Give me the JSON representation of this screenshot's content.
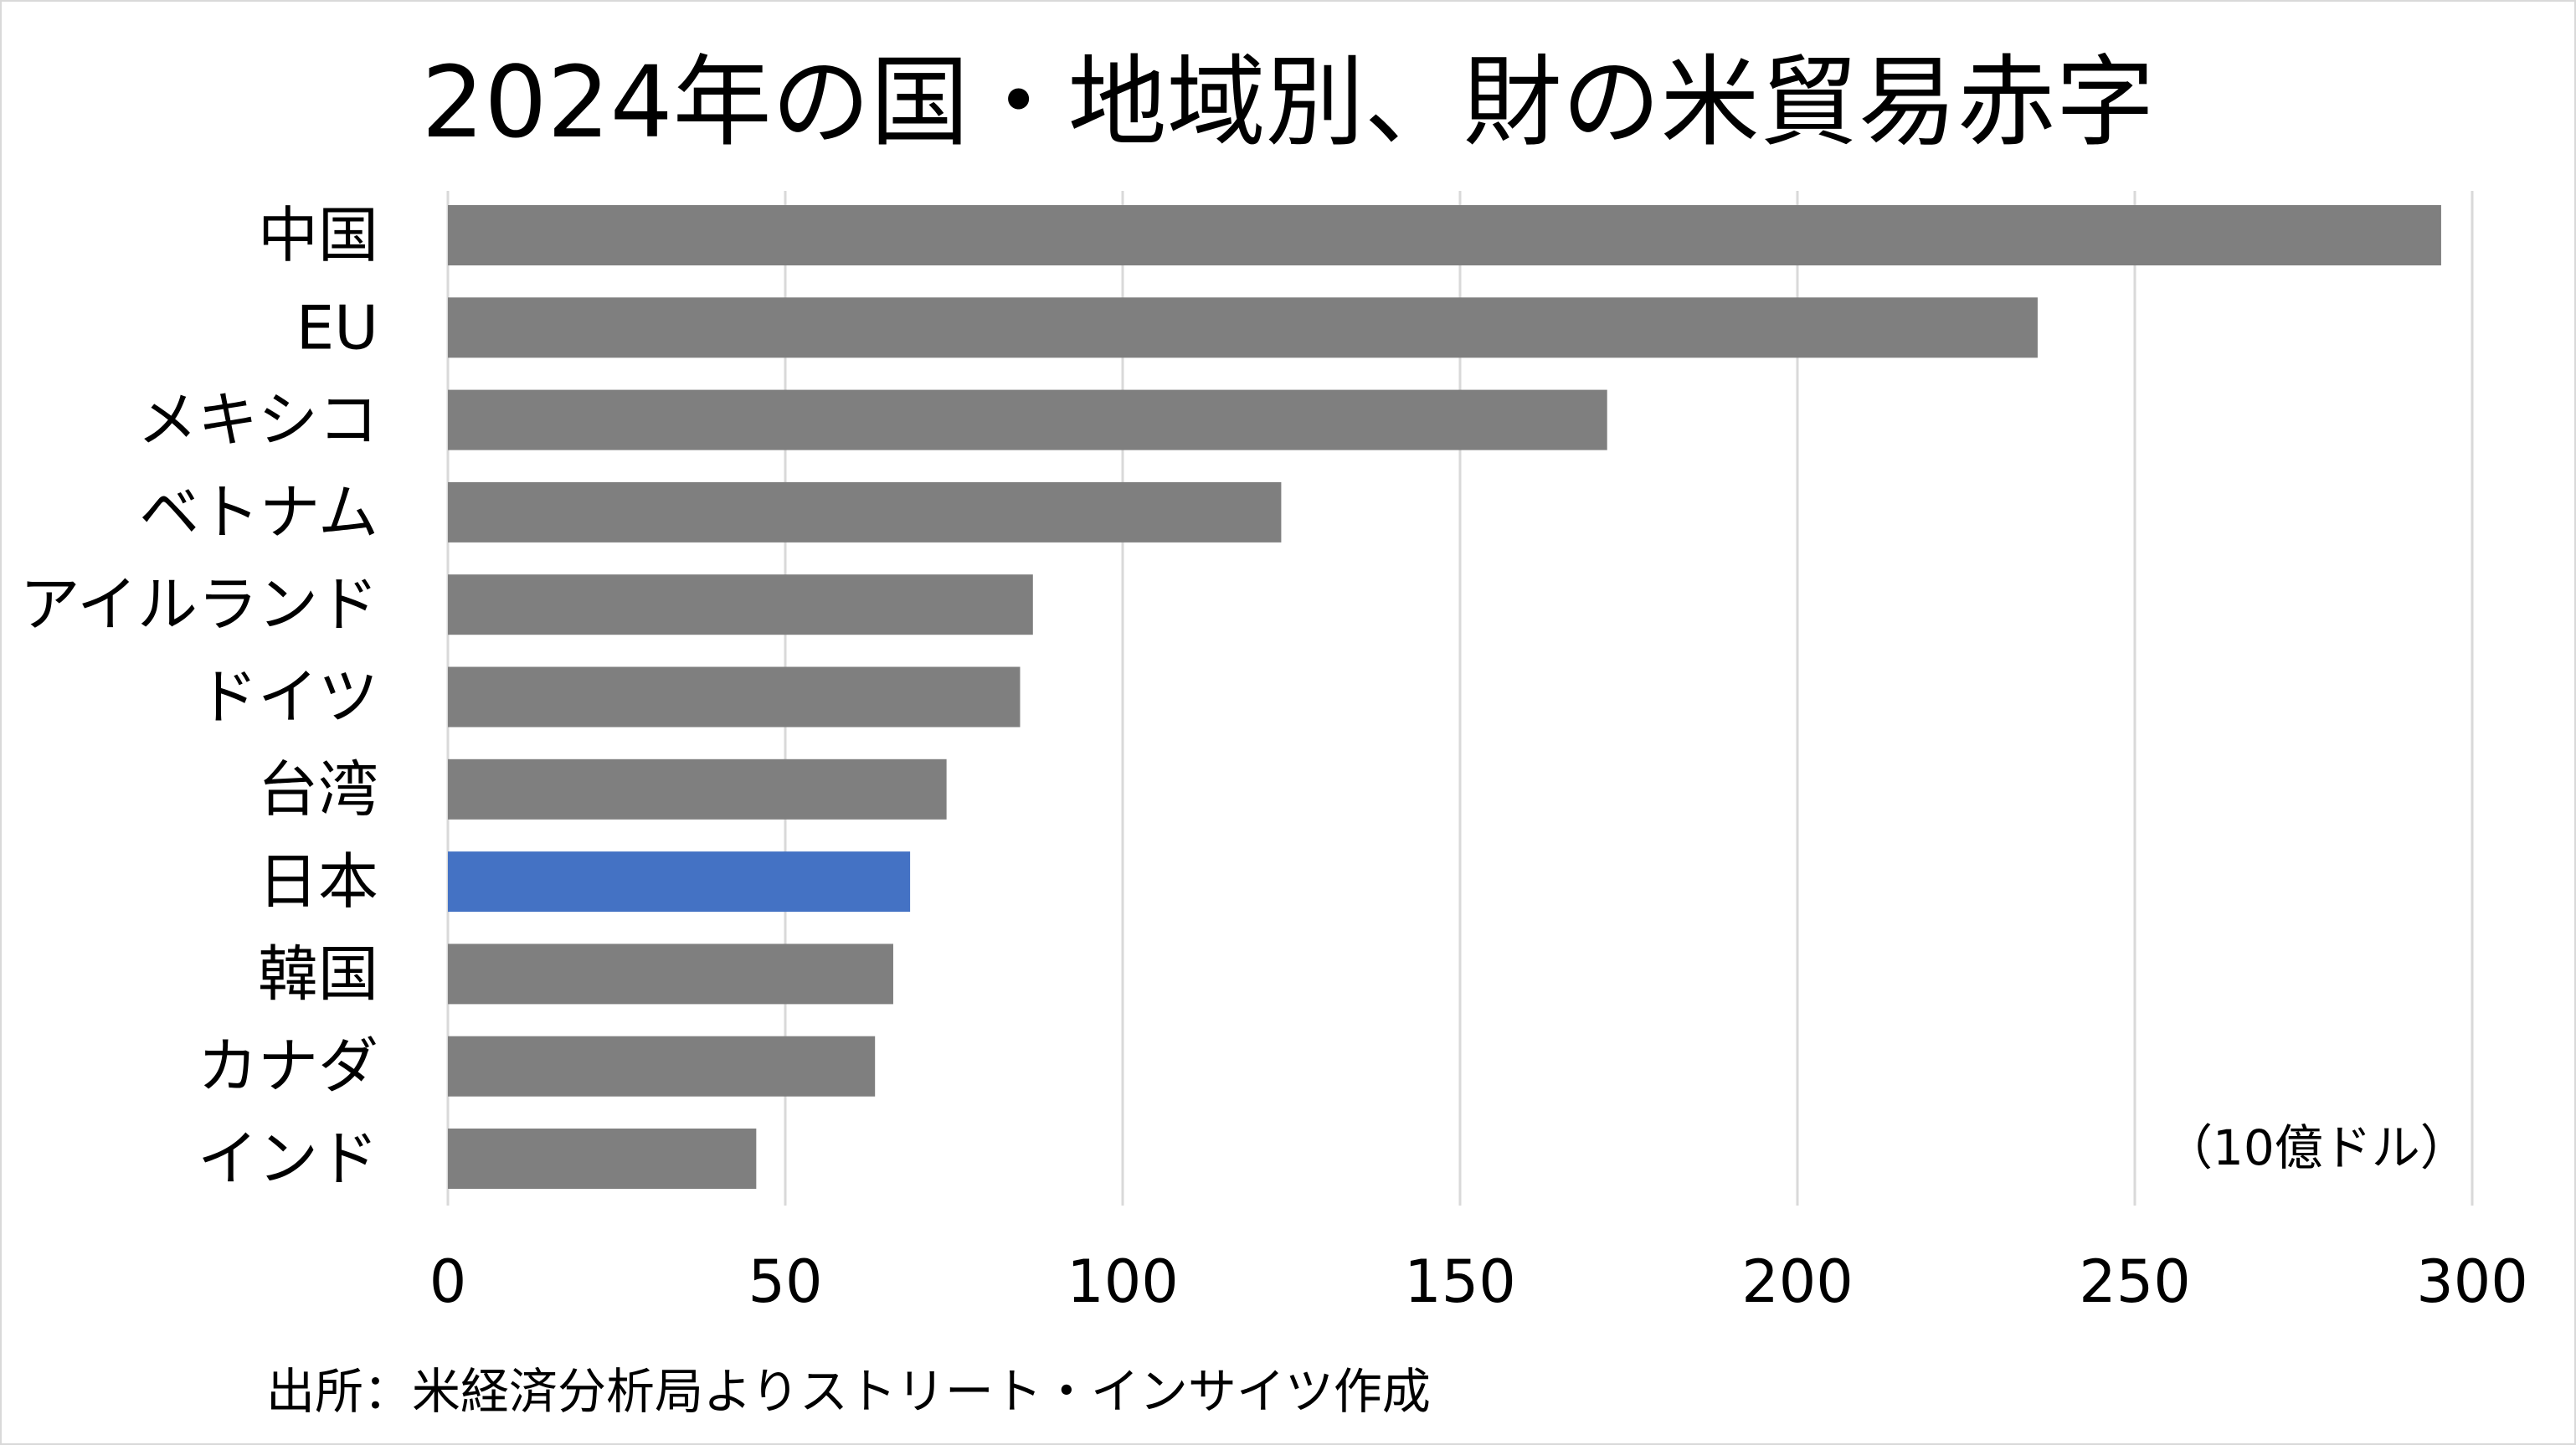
{
  "chart_data": {
    "type": "bar",
    "orientation": "horizontal",
    "title": "2024年の国・地域別、財の米貿易赤字",
    "unit": "（10億ドル）",
    "categories": [
      "中国",
      "EU",
      "メキシコ",
      "ベトナム",
      "アイルランド",
      "ドイツ",
      "台湾",
      "日本",
      "韓国",
      "カナダ",
      "インド"
    ],
    "values": [
      295.4,
      235.6,
      171.8,
      123.5,
      86.7,
      84.8,
      73.9,
      68.5,
      66.0,
      63.3,
      45.7
    ],
    "highlight_category": "日本",
    "bar_color": "#7f7f7f",
    "highlight_color": "#4472c4",
    "grid_color": "#d9d9d9",
    "xlim": [
      0,
      300
    ],
    "x_ticks": [
      0,
      50,
      100,
      150,
      200,
      250,
      300
    ],
    "x_tick_labels": [
      "0",
      "50",
      "100",
      "150",
      "200",
      "250",
      "300"
    ],
    "grid": true,
    "legend": "none"
  },
  "source_note": "出所：米経済分析局よりストリート・インサイツ作成"
}
